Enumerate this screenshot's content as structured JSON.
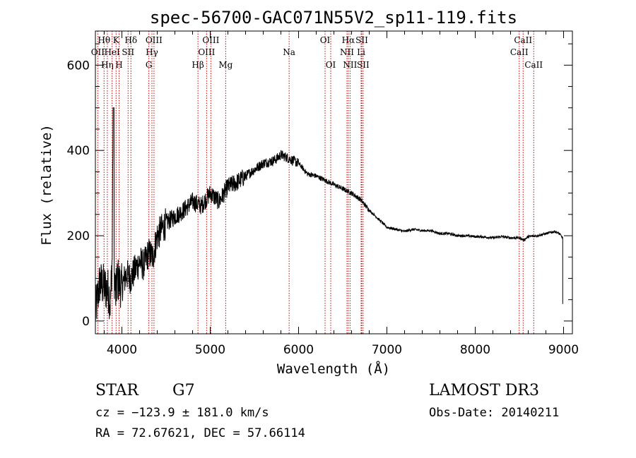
{
  "chart_data": {
    "type": "line",
    "title": "spec-56700-GAC071N55V2_sp11-119.fits",
    "xlabel": "Wavelength (Å)",
    "ylabel": "Flux (relative)",
    "xlim": [
      3700,
      9100
    ],
    "ylim": [
      -30,
      680
    ],
    "x_ticks": [
      4000,
      5000,
      6000,
      7000,
      8000,
      9000
    ],
    "y_ticks": [
      0,
      200,
      400,
      600
    ],
    "x_tick_labels": [
      "4000",
      "5000",
      "6000",
      "7000",
      "8000",
      "9000"
    ],
    "y_tick_labels": [
      "0",
      "200",
      "400",
      "600"
    ],
    "series": [
      {
        "name": "flux",
        "x": [
          3700,
          3750,
          3800,
          3850,
          3870,
          3890,
          3900,
          3910,
          3930,
          3950,
          3970,
          4000,
          4050,
          4100,
          4150,
          4200,
          4250,
          4300,
          4350,
          4400,
          4500,
          4600,
          4700,
          4800,
          4900,
          5000,
          5100,
          5200,
          5300,
          5400,
          5500,
          5600,
          5700,
          5750,
          5800,
          5850,
          5900,
          5950,
          6000,
          6100,
          6200,
          6300,
          6400,
          6500,
          6600,
          6700,
          6800,
          6900,
          7000,
          7100,
          7200,
          7300,
          7400,
          7500,
          7600,
          7700,
          7800,
          7900,
          8000,
          8100,
          8200,
          8300,
          8400,
          8500,
          8550,
          8600,
          8700,
          8800,
          8900,
          8950,
          8990
        ],
        "y": [
          20,
          90,
          80,
          70,
          40,
          150,
          500,
          120,
          60,
          100,
          90,
          80,
          110,
          100,
          120,
          140,
          130,
          160,
          150,
          200,
          230,
          245,
          260,
          280,
          270,
          300,
          280,
          315,
          325,
          340,
          355,
          370,
          375,
          380,
          390,
          385,
          380,
          375,
          370,
          345,
          340,
          330,
          320,
          310,
          300,
          285,
          260,
          240,
          220,
          215,
          210,
          215,
          212,
          212,
          205,
          205,
          200,
          200,
          198,
          197,
          195,
          198,
          195,
          195,
          190,
          198,
          200,
          205,
          210,
          205,
          195
        ]
      }
    ],
    "spectral_lines": [
      {
        "label": "OII",
        "x": 3727,
        "row": 2
      },
      {
        "label": "Hθ",
        "x": 3798,
        "row": 1
      },
      {
        "label": "Hη",
        "x": 3835,
        "row": 3
      },
      {
        "label": "HeI",
        "x": 3889,
        "row": 2
      },
      {
        "label": "K",
        "x": 3934,
        "row": 1
      },
      {
        "label": "H",
        "x": 3968,
        "row": 3
      },
      {
        "label": "SII",
        "x": 4070,
        "row": 2
      },
      {
        "label": "Hδ",
        "x": 4102,
        "row": 1
      },
      {
        "label": "G",
        "x": 4305,
        "row": 3
      },
      {
        "label": "Hγ",
        "x": 4340,
        "row": 2
      },
      {
        "label": "OIII",
        "x": 4363,
        "row": 1
      },
      {
        "label": "Hβ",
        "x": 4861,
        "row": 3
      },
      {
        "label": "OIII",
        "x": 4959,
        "row": 2
      },
      {
        "label": "OIII",
        "x": 5007,
        "row": 1
      },
      {
        "label": "Mg",
        "x": 5175,
        "row": 3
      },
      {
        "label": "Na",
        "x": 5893,
        "row": 2
      },
      {
        "label": "OI",
        "x": 6300,
        "row": 1
      },
      {
        "label": "OI",
        "x": 6364,
        "row": 3
      },
      {
        "label": "NII",
        "x": 6548,
        "row": 2
      },
      {
        "label": "Hα",
        "x": 6563,
        "row": 1
      },
      {
        "label": "NII",
        "x": 6583,
        "row": 3
      },
      {
        "label": "Li",
        "x": 6708,
        "row": 2
      },
      {
        "label": "SII",
        "x": 6716,
        "row": 1
      },
      {
        "label": "SII",
        "x": 6731,
        "row": 3
      },
      {
        "label": "CaII",
        "x": 8498,
        "row": 2
      },
      {
        "label": "CaII",
        "x": 8542,
        "row": 1
      },
      {
        "label": "CaII",
        "x": 8662,
        "row": 3
      }
    ]
  },
  "info": {
    "object_type": "STAR",
    "subclass": "G7",
    "cz_line": "cz = −123.9 ± 181.0 km/s",
    "coords_line": "RA =  72.67621, DEC =  57.66114",
    "survey": "LAMOST DR3",
    "obs_date_line": "Obs-Date: 20140211"
  },
  "colors": {
    "line": "#000000",
    "marker_lines": "#cc0000",
    "background": "#ffffff"
  }
}
